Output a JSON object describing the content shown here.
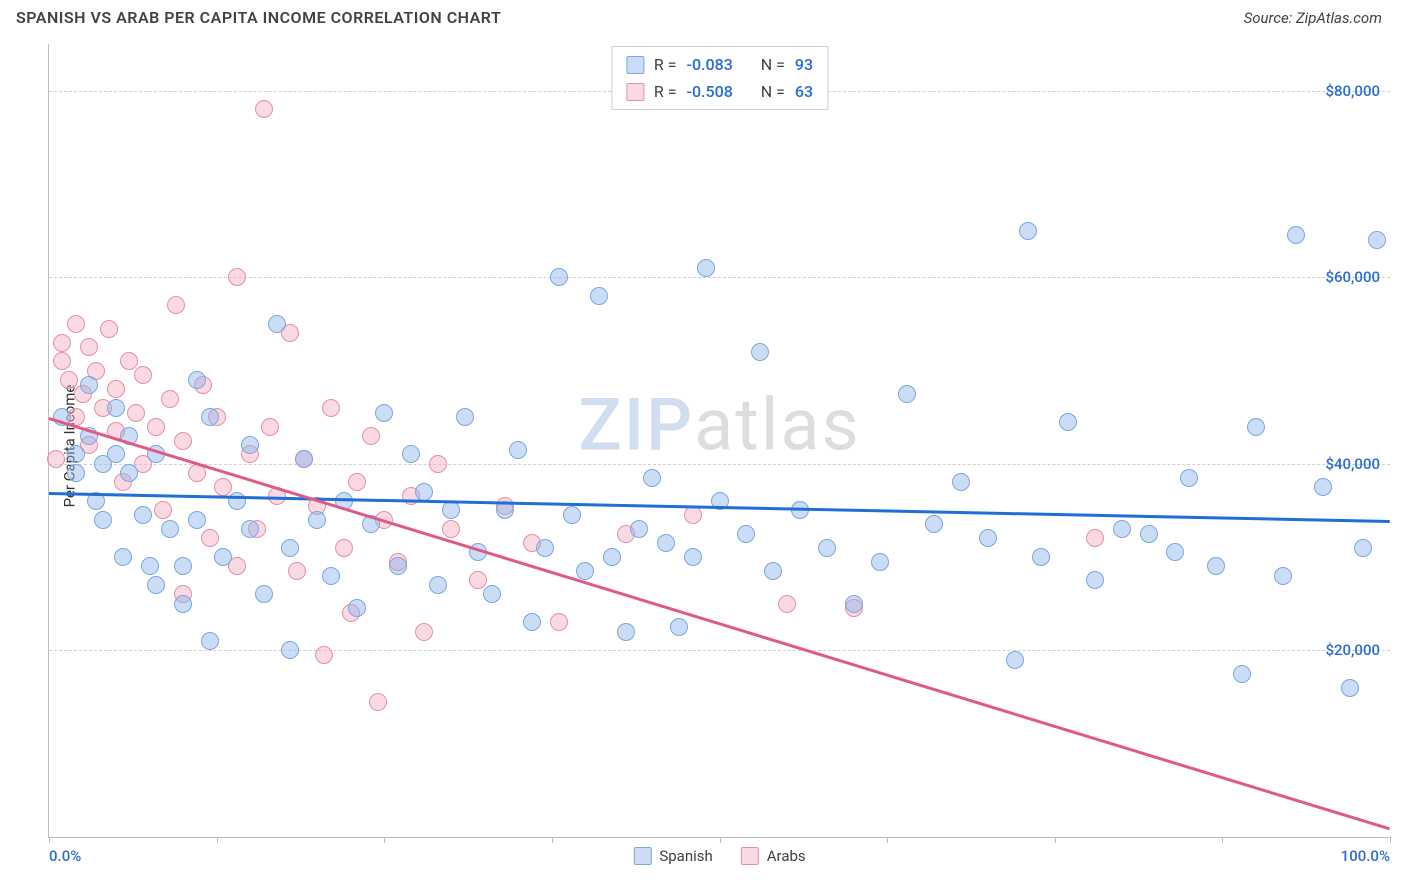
{
  "title": "SPANISH VS ARAB PER CAPITA INCOME CORRELATION CHART",
  "source": "Source: ZipAtlas.com",
  "ylabel": "Per Capita Income",
  "watermark": {
    "z": "ZIP",
    "rest": "atlas"
  },
  "colors": {
    "bg": "#ffffff",
    "axis": "#bdbdbd",
    "grid": "#d0d0d0",
    "text": "#424242",
    "value": "#2a6bd4",
    "series1_fill": "rgba(140,180,235,0.45)",
    "series1_stroke": "#7ba8de",
    "series1_line": "#1f6fd6",
    "series2_fill": "rgba(245,170,190,0.45)",
    "series2_stroke": "#e690a6",
    "series2_line": "#e05a86"
  },
  "chart": {
    "type": "scatter",
    "xlim": [
      0,
      100
    ],
    "ylim": [
      0,
      85000
    ],
    "xticks": [
      0,
      12.5,
      25,
      37.5,
      50,
      62.5,
      75,
      87.5,
      100
    ],
    "xticklabels_visible": {
      "0": "0.0%",
      "100": "100.0%"
    },
    "yticks": [
      20000,
      40000,
      60000,
      80000
    ],
    "yticklabels": {
      "20000": "$20,000",
      "40000": "$40,000",
      "60000": "$60,000",
      "80000": "$80,000"
    },
    "marker_radius": 9,
    "marker_stroke_width": 1.5,
    "line_width": 2.5,
    "title_fontsize": 16,
    "label_fontsize": 15
  },
  "legend_top": [
    {
      "swatch": "series1",
      "r_label": "R = ",
      "r": "-0.083",
      "n_label": "N = ",
      "n": "93"
    },
    {
      "swatch": "series2",
      "r_label": "R = ",
      "r": "-0.508",
      "n_label": "N = ",
      "n": "63"
    }
  ],
  "legend_bottom": [
    {
      "swatch": "series1",
      "label": "Spanish"
    },
    {
      "swatch": "series2",
      "label": "Arabs"
    }
  ],
  "trend_lines": [
    {
      "series": "series1",
      "x1": 0,
      "y1": 37000,
      "x2": 100,
      "y2": 34000
    },
    {
      "series": "series2",
      "x1": 0,
      "y1": 45000,
      "x2": 100,
      "y2": 1000
    }
  ],
  "points_series1": [
    [
      1,
      45000
    ],
    [
      2,
      41000
    ],
    [
      2,
      39000
    ],
    [
      3,
      48500
    ],
    [
      3,
      43000
    ],
    [
      3.5,
      36000
    ],
    [
      4,
      40000
    ],
    [
      4,
      34000
    ],
    [
      5,
      46000
    ],
    [
      5,
      41000
    ],
    [
      5.5,
      30000
    ],
    [
      6,
      39000
    ],
    [
      6,
      43000
    ],
    [
      7,
      34500
    ],
    [
      7.5,
      29000
    ],
    [
      8,
      27000
    ],
    [
      8,
      41000
    ],
    [
      9,
      33000
    ],
    [
      10,
      29000
    ],
    [
      10,
      25000
    ],
    [
      11,
      49000
    ],
    [
      11,
      34000
    ],
    [
      12,
      45000
    ],
    [
      12,
      21000
    ],
    [
      13,
      30000
    ],
    [
      14,
      36000
    ],
    [
      15,
      33000
    ],
    [
      15,
      42000
    ],
    [
      16,
      26000
    ],
    [
      17,
      55000
    ],
    [
      18,
      31000
    ],
    [
      18,
      20000
    ],
    [
      19,
      40500
    ],
    [
      20,
      34000
    ],
    [
      21,
      28000
    ],
    [
      22,
      36000
    ],
    [
      23,
      24500
    ],
    [
      24,
      33500
    ],
    [
      25,
      45500
    ],
    [
      26,
      29000
    ],
    [
      27,
      41000
    ],
    [
      28,
      37000
    ],
    [
      29,
      27000
    ],
    [
      30,
      35000
    ],
    [
      31,
      45000
    ],
    [
      32,
      30500
    ],
    [
      33,
      26000
    ],
    [
      34,
      35000
    ],
    [
      35,
      41500
    ],
    [
      36,
      23000
    ],
    [
      37,
      31000
    ],
    [
      38,
      60000
    ],
    [
      39,
      34500
    ],
    [
      40,
      28500
    ],
    [
      41,
      58000
    ],
    [
      42,
      30000
    ],
    [
      43,
      22000
    ],
    [
      44,
      33000
    ],
    [
      45,
      38500
    ],
    [
      46,
      31500
    ],
    [
      47,
      22500
    ],
    [
      48,
      30000
    ],
    [
      49,
      61000
    ],
    [
      50,
      36000
    ],
    [
      52,
      32500
    ],
    [
      53,
      52000
    ],
    [
      54,
      28500
    ],
    [
      56,
      35000
    ],
    [
      58,
      31000
    ],
    [
      60,
      25000
    ],
    [
      62,
      29500
    ],
    [
      64,
      47500
    ],
    [
      66,
      33500
    ],
    [
      68,
      38000
    ],
    [
      70,
      32000
    ],
    [
      72,
      19000
    ],
    [
      73,
      65000
    ],
    [
      74,
      30000
    ],
    [
      76,
      44500
    ],
    [
      78,
      27500
    ],
    [
      80,
      33000
    ],
    [
      82,
      32500
    ],
    [
      84,
      30500
    ],
    [
      85,
      38500
    ],
    [
      87,
      29000
    ],
    [
      89,
      17500
    ],
    [
      90,
      44000
    ],
    [
      92,
      28000
    ],
    [
      93,
      64500
    ],
    [
      95,
      37500
    ],
    [
      97,
      16000
    ],
    [
      98,
      31000
    ],
    [
      99,
      64000
    ]
  ],
  "points_series2": [
    [
      0.5,
      40500
    ],
    [
      1,
      51000
    ],
    [
      1,
      53000
    ],
    [
      1.5,
      49000
    ],
    [
      2,
      45000
    ],
    [
      2,
      55000
    ],
    [
      2.5,
      47500
    ],
    [
      3,
      52500
    ],
    [
      3,
      42000
    ],
    [
      3.5,
      50000
    ],
    [
      4,
      46000
    ],
    [
      4.5,
      54500
    ],
    [
      5,
      48000
    ],
    [
      5,
      43500
    ],
    [
      5.5,
      38000
    ],
    [
      6,
      51000
    ],
    [
      6.5,
      45500
    ],
    [
      7,
      40000
    ],
    [
      7,
      49500
    ],
    [
      8,
      44000
    ],
    [
      8.5,
      35000
    ],
    [
      9,
      47000
    ],
    [
      9.5,
      57000
    ],
    [
      10,
      42500
    ],
    [
      10,
      26000
    ],
    [
      11,
      39000
    ],
    [
      11.5,
      48500
    ],
    [
      12,
      32000
    ],
    [
      12.5,
      45000
    ],
    [
      13,
      37500
    ],
    [
      14,
      60000
    ],
    [
      14,
      29000
    ],
    [
      15,
      41000
    ],
    [
      15.5,
      33000
    ],
    [
      16,
      78000
    ],
    [
      16.5,
      44000
    ],
    [
      17,
      36500
    ],
    [
      18,
      54000
    ],
    [
      18.5,
      28500
    ],
    [
      19,
      40500
    ],
    [
      20,
      35500
    ],
    [
      20.5,
      19500
    ],
    [
      21,
      46000
    ],
    [
      22,
      31000
    ],
    [
      22.5,
      24000
    ],
    [
      23,
      38000
    ],
    [
      24,
      43000
    ],
    [
      24.5,
      14500
    ],
    [
      25,
      34000
    ],
    [
      26,
      29500
    ],
    [
      27,
      36500
    ],
    [
      28,
      22000
    ],
    [
      29,
      40000
    ],
    [
      30,
      33000
    ],
    [
      32,
      27500
    ],
    [
      34,
      35500
    ],
    [
      36,
      31500
    ],
    [
      38,
      23000
    ],
    [
      43,
      32500
    ],
    [
      48,
      34500
    ],
    [
      55,
      25000
    ],
    [
      60,
      24500
    ],
    [
      78,
      32000
    ]
  ]
}
